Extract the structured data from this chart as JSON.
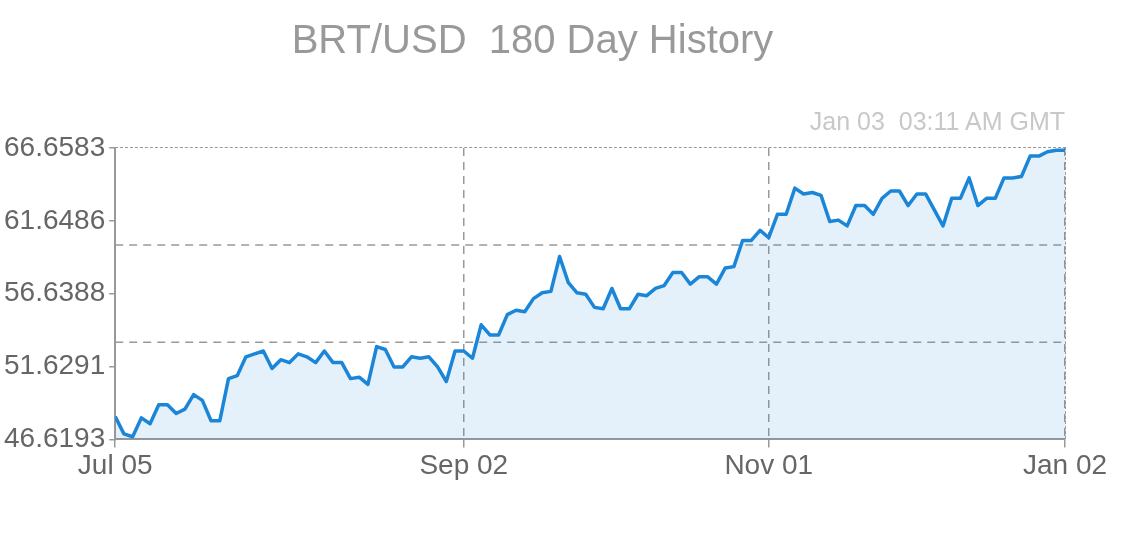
{
  "chart_data": {
    "type": "area",
    "title": "BRT/USD  180 Day History",
    "annotations": [
      "Jan 03  03:11 AM GMT"
    ],
    "categories": [
      "Jul 05",
      null,
      null,
      null,
      null,
      null,
      null,
      null,
      null,
      null,
      null,
      null,
      null,
      null,
      null,
      null,
      null,
      null,
      null,
      null,
      null,
      null,
      null,
      null,
      null,
      null,
      null,
      null,
      null,
      null,
      null,
      null,
      null,
      null,
      null,
      null,
      null,
      null,
      null,
      null,
      "Sep 02",
      null,
      null,
      null,
      null,
      null,
      null,
      null,
      null,
      null,
      null,
      null,
      null,
      null,
      null,
      null,
      null,
      null,
      null,
      null,
      null,
      null,
      null,
      null,
      null,
      null,
      null,
      null,
      null,
      null,
      null,
      null,
      null,
      null,
      null,
      "Nov 01",
      null,
      null,
      null,
      null,
      null,
      null,
      null,
      null,
      null,
      null,
      null,
      null,
      null,
      null,
      null,
      null,
      null,
      null,
      null,
      null,
      null,
      null,
      null,
      null,
      null,
      null,
      null,
      null,
      null,
      null,
      null,
      null,
      null,
      "Jan 02"
    ],
    "series": [
      {
        "color": "#1b86d8",
        "values": [
          48.2,
          47.0,
          46.8,
          48.1,
          47.7,
          49.0,
          49.0,
          48.4,
          48.7,
          49.7,
          49.3,
          47.9,
          47.9,
          50.8,
          51.0,
          52.3,
          52.5,
          52.7,
          51.5,
          52.1,
          51.9,
          52.5,
          52.3,
          51.9,
          52.7,
          51.9,
          51.9,
          50.8,
          50.9,
          50.4,
          53.0,
          52.8,
          51.6,
          51.6,
          52.3,
          52.2,
          52.3,
          51.6,
          50.6,
          52.7,
          52.7,
          52.2,
          54.5,
          53.8,
          53.8,
          55.2,
          55.5,
          55.4,
          56.3,
          56.7,
          56.8,
          59.2,
          57.4,
          56.7,
          56.6,
          55.7,
          55.6,
          57.0,
          55.6,
          55.6,
          56.6,
          56.5,
          57.0,
          57.2,
          58.1,
          58.1,
          57.3,
          57.8,
          57.8,
          57.3,
          58.4,
          58.5,
          60.3,
          60.3,
          61.0,
          60.5,
          62.1,
          62.1,
          63.9,
          63.5,
          63.6,
          63.4,
          61.6,
          61.7,
          61.3,
          62.7,
          62.7,
          62.1,
          63.2,
          63.7,
          63.7,
          62.7,
          63.5,
          63.5,
          62.4,
          61.3,
          63.2,
          63.2,
          64.6,
          62.7,
          63.2,
          63.2,
          64.6,
          64.6,
          64.7,
          66.1,
          66.1,
          66.4,
          66.5,
          66.5
        ]
      }
    ],
    "ylim": [
      46.6193,
      66.6583
    ],
    "yticks": [
      46.6193,
      51.6291,
      56.6388,
      61.6486,
      66.6583
    ],
    "ref_lines": [
      {
        "axis": "y",
        "value": 53.3,
        "color": "#999999",
        "line_style": "dashed"
      },
      {
        "axis": "y",
        "value": 59.98,
        "color": "#999999",
        "line_style": "dashed"
      }
    ],
    "grid": "x",
    "legend": false,
    "marker": "none",
    "line_style": "solid"
  }
}
